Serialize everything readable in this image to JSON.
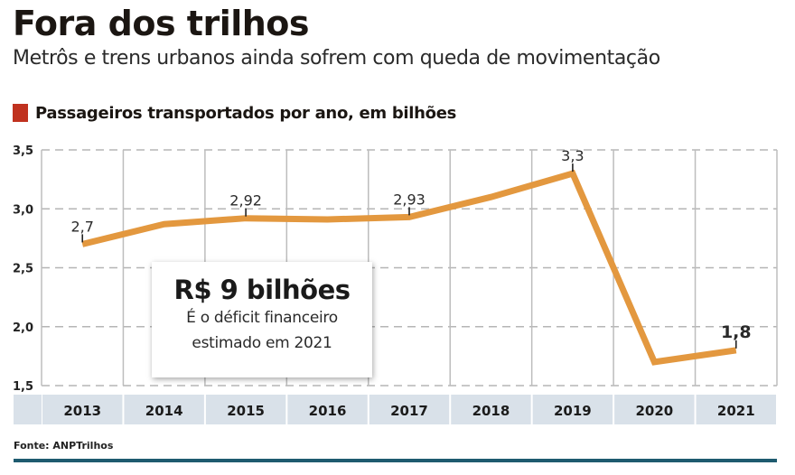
{
  "header": {
    "title": "Fora dos trilhos",
    "subtitle": "Metrôs e trens urbanos ainda sofrem com queda de movimentação",
    "chart_heading": "Passageiros transportados por ano, em bilhões",
    "accent_color": "#c0321f"
  },
  "callout": {
    "headline": "R$ 9 bilhões",
    "line1": "É o déficit financeiro",
    "line2": "estimado em 2021"
  },
  "footer": {
    "source": "Fonte: ANPTrilhos",
    "rule_color": "#1e5b6f"
  },
  "chart_data": {
    "type": "line",
    "title": "Passageiros transportados por ano, em bilhões",
    "xlabel": "",
    "ylabel": "",
    "categories": [
      "2013",
      "2014",
      "2015",
      "2016",
      "2017",
      "2018",
      "2019",
      "2020",
      "2021"
    ],
    "series": [
      {
        "name": "Passageiros (bilhões)",
        "color": "#e3983f",
        "values": [
          2.7,
          2.87,
          2.92,
          2.91,
          2.93,
          3.1,
          3.3,
          1.7,
          1.8
        ]
      }
    ],
    "data_labels": [
      {
        "category": "2013",
        "text": "2,7",
        "bold": false
      },
      {
        "category": "2015",
        "text": "2,92",
        "bold": false
      },
      {
        "category": "2017",
        "text": "2,93",
        "bold": false
      },
      {
        "category": "2019",
        "text": "3,3",
        "bold": false
      },
      {
        "category": "2021",
        "text": "1,8",
        "bold": true
      }
    ],
    "ylim": [
      1.5,
      3.5
    ],
    "yticks": [
      1.5,
      2.0,
      2.5,
      3.0,
      3.5
    ],
    "ytick_labels": [
      "1,5",
      "2,0",
      "2,5",
      "3,0",
      "3,5"
    ],
    "grid": true,
    "legend": "none"
  }
}
